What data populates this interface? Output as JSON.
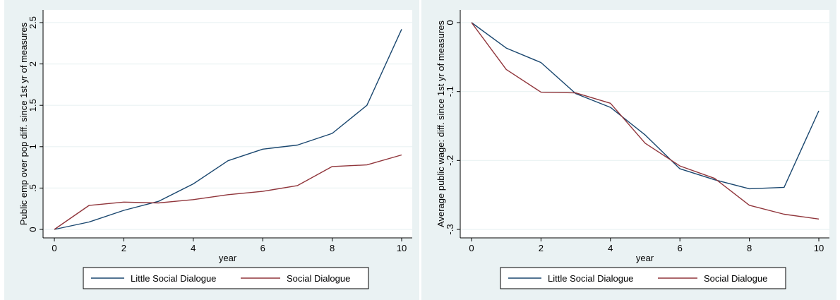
{
  "chart_data": [
    {
      "type": "line",
      "xlabel": "year",
      "ylabel": "Public emp over pop diff. since 1st yr of measures",
      "xlim": [
        0,
        10
      ],
      "ylim": [
        0,
        2.5
      ],
      "x_ticks": [
        0,
        2,
        4,
        6,
        8,
        10
      ],
      "x_tick_labels": [
        "0",
        "2",
        "4",
        "6",
        "8",
        "10"
      ],
      "y_ticks": [
        0,
        0.5,
        1,
        1.5,
        2,
        2.5
      ],
      "y_tick_labels": [
        "0",
        ".5",
        "1",
        "1.5",
        "2",
        "2.5"
      ],
      "grid": true,
      "legend_position": "bottom",
      "x": [
        0,
        1,
        2,
        3,
        4,
        5,
        6,
        7,
        8,
        9,
        10
      ],
      "series": [
        {
          "name": "Little Social Dialogue",
          "color": "#1a476f",
          "values": [
            0,
            0.09,
            0.23,
            0.34,
            0.55,
            0.83,
            0.97,
            1.02,
            1.16,
            1.5,
            2.42
          ]
        },
        {
          "name": "Social Dialogue",
          "color": "#90353b",
          "values": [
            0,
            0.29,
            0.33,
            0.32,
            0.36,
            0.42,
            0.46,
            0.53,
            0.76,
            0.78,
            0.9
          ]
        }
      ]
    },
    {
      "type": "line",
      "xlabel": "year",
      "ylabel": "Average public wage: diff. since 1st yr of measures",
      "xlim": [
        0,
        10
      ],
      "ylim": [
        -0.3,
        0
      ],
      "x_ticks": [
        0,
        2,
        4,
        6,
        8,
        10
      ],
      "x_tick_labels": [
        "0",
        "2",
        "4",
        "6",
        "8",
        "10"
      ],
      "y_ticks": [
        -0.3,
        -0.2,
        -0.1,
        0
      ],
      "y_tick_labels": [
        "-.3",
        "-.2",
        "-.1",
        "0"
      ],
      "grid": true,
      "legend_position": "bottom",
      "x": [
        0,
        1,
        2,
        3,
        4,
        5,
        6,
        7,
        8,
        9,
        10
      ],
      "series": [
        {
          "name": "Little Social Dialogue",
          "color": "#1a476f",
          "values": [
            0,
            -0.037,
            -0.058,
            -0.103,
            -0.123,
            -0.163,
            -0.212,
            -0.228,
            -0.241,
            -0.239,
            -0.128
          ]
        },
        {
          "name": "Social Dialogue",
          "color": "#90353b",
          "values": [
            0,
            -0.068,
            -0.101,
            -0.102,
            -0.117,
            -0.175,
            -0.208,
            -0.226,
            -0.265,
            -0.278,
            -0.285
          ]
        }
      ]
    }
  ]
}
